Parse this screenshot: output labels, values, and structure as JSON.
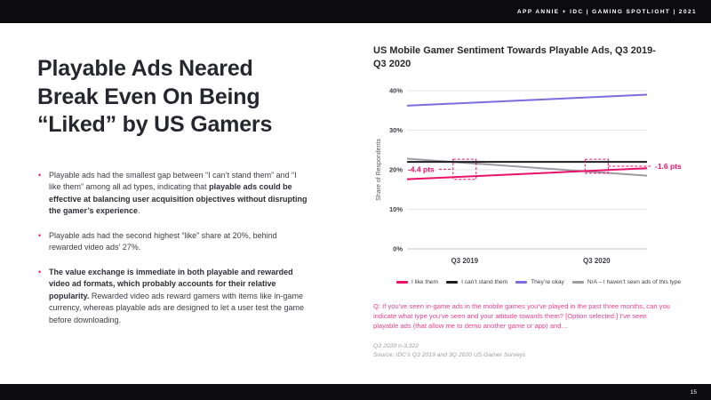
{
  "header": {
    "label": "APP ANNIE + IDC  |  GAMING SPOTLIGHT  |  2021"
  },
  "footer": {
    "page_number": "15"
  },
  "colors": {
    "accent_pink": "#e9116b",
    "question_pink": "#e9418d"
  },
  "main": {
    "title": "Playable Ads Neared Break Even On Being “Liked” by US Gamers",
    "bullets": [
      {
        "pre": "Playable ads had the smallest gap between “I can’t stand them” and “I like them” among all ad types, indicating that ",
        "bold": "playable ads could be effective at balancing user acquisition objectives without disrupting the gamer’s experience",
        "post": "."
      },
      {
        "pre": "Playable ads had the second highest “like” share at 20%, behind rewarded video ads’ 27%.",
        "bold": "",
        "post": ""
      },
      {
        "pre": "",
        "bold": "The value exchange is immediate in both playable and rewarded video ad formats, which probably accounts for their relative popularity.",
        "post": " Rewarded video ads reward gamers with items like in-game currency, whereas playable ads are designed to let a user test the game before downloading."
      }
    ]
  },
  "chart_data": {
    "type": "line",
    "title": "US Mobile Gamer Sentiment Towards Playable Ads, Q3 2019-Q3 2020",
    "ylabel": "Share of Respondents",
    "ylim": [
      0,
      40
    ],
    "yticks": [
      0,
      10,
      20,
      30,
      40
    ],
    "categories": [
      "Q3 2019",
      "Q3 2020"
    ],
    "grid": true,
    "legend_position": "bottom",
    "series": [
      {
        "name": "I like them",
        "color": "#e9116b",
        "values": [
          17.6,
          20.4
        ]
      },
      {
        "name": "I can’t stand them",
        "color": "#1c1c22",
        "values": [
          22.0,
          22.0
        ]
      },
      {
        "name": "They’re okay",
        "color": "#7b6ce0",
        "values": [
          36.2,
          39.0
        ]
      },
      {
        "name": "N/A – I haven’t seen ads of this type",
        "color": "#9b9ba4",
        "values": [
          22.8,
          18.5
        ]
      }
    ],
    "annotations": [
      {
        "label": "-4.4 pts",
        "category_index": 0,
        "side": "left",
        "gap_between": [
          "I can’t stand them",
          "I like them"
        ]
      },
      {
        "label": "-1.6 pts",
        "category_index": 1,
        "side": "right",
        "gap_between": [
          "I can’t stand them",
          "I like them"
        ]
      }
    ]
  },
  "footnotes": {
    "question": "Q: If you’ve seen in-game ads in the mobile games you’ve played in the past three months, can you indicate what type you’ve seen and your attitude towards them? [Option selected:] I’ve seen playable ads (that allow me to demo another game or app) and…",
    "sample": "Q3 2020 n-3,322",
    "source": "Source: IDC’s Q3 2019 and 3Q 2020 US Gamer Surveys"
  }
}
